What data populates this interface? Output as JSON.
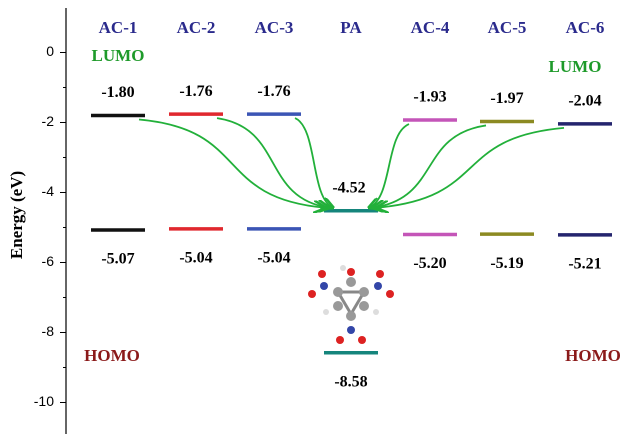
{
  "chart_data": {
    "type": "energy-level",
    "y_label": "Energy (eV)",
    "categories": [
      "AC-1",
      "AC-2",
      "AC-3",
      "PA",
      "AC-4",
      "AC-5",
      "AC-6"
    ],
    "colors": [
      "#111111",
      "#e0282e",
      "#3b55b5",
      "#15857c",
      "#c455b8",
      "#8c8a22",
      "#24246e"
    ],
    "series": [
      {
        "name": "LUMO",
        "color": "#1e9a2a",
        "values": [
          -1.8,
          -1.76,
          -1.76,
          -4.52,
          -1.93,
          -1.97,
          -2.04
        ],
        "value_labels": [
          "-1.80",
          "-1.76",
          "-1.76",
          "-4.52",
          "-1.93",
          "-1.97",
          "-2.04"
        ]
      },
      {
        "name": "HOMO",
        "color": "#8b1a1a",
        "values": [
          -5.07,
          -5.04,
          -5.04,
          -8.58,
          -5.2,
          -5.19,
          -5.21
        ],
        "value_labels": [
          "-5.07",
          "-5.04",
          "-5.04",
          "-8.58",
          "-5.20",
          "-5.19",
          "-5.21"
        ]
      }
    ],
    "ylim": [
      -10.9,
      1.5
    ],
    "yticks": [
      0,
      -2,
      -4,
      -6,
      -8,
      -10
    ]
  }
}
